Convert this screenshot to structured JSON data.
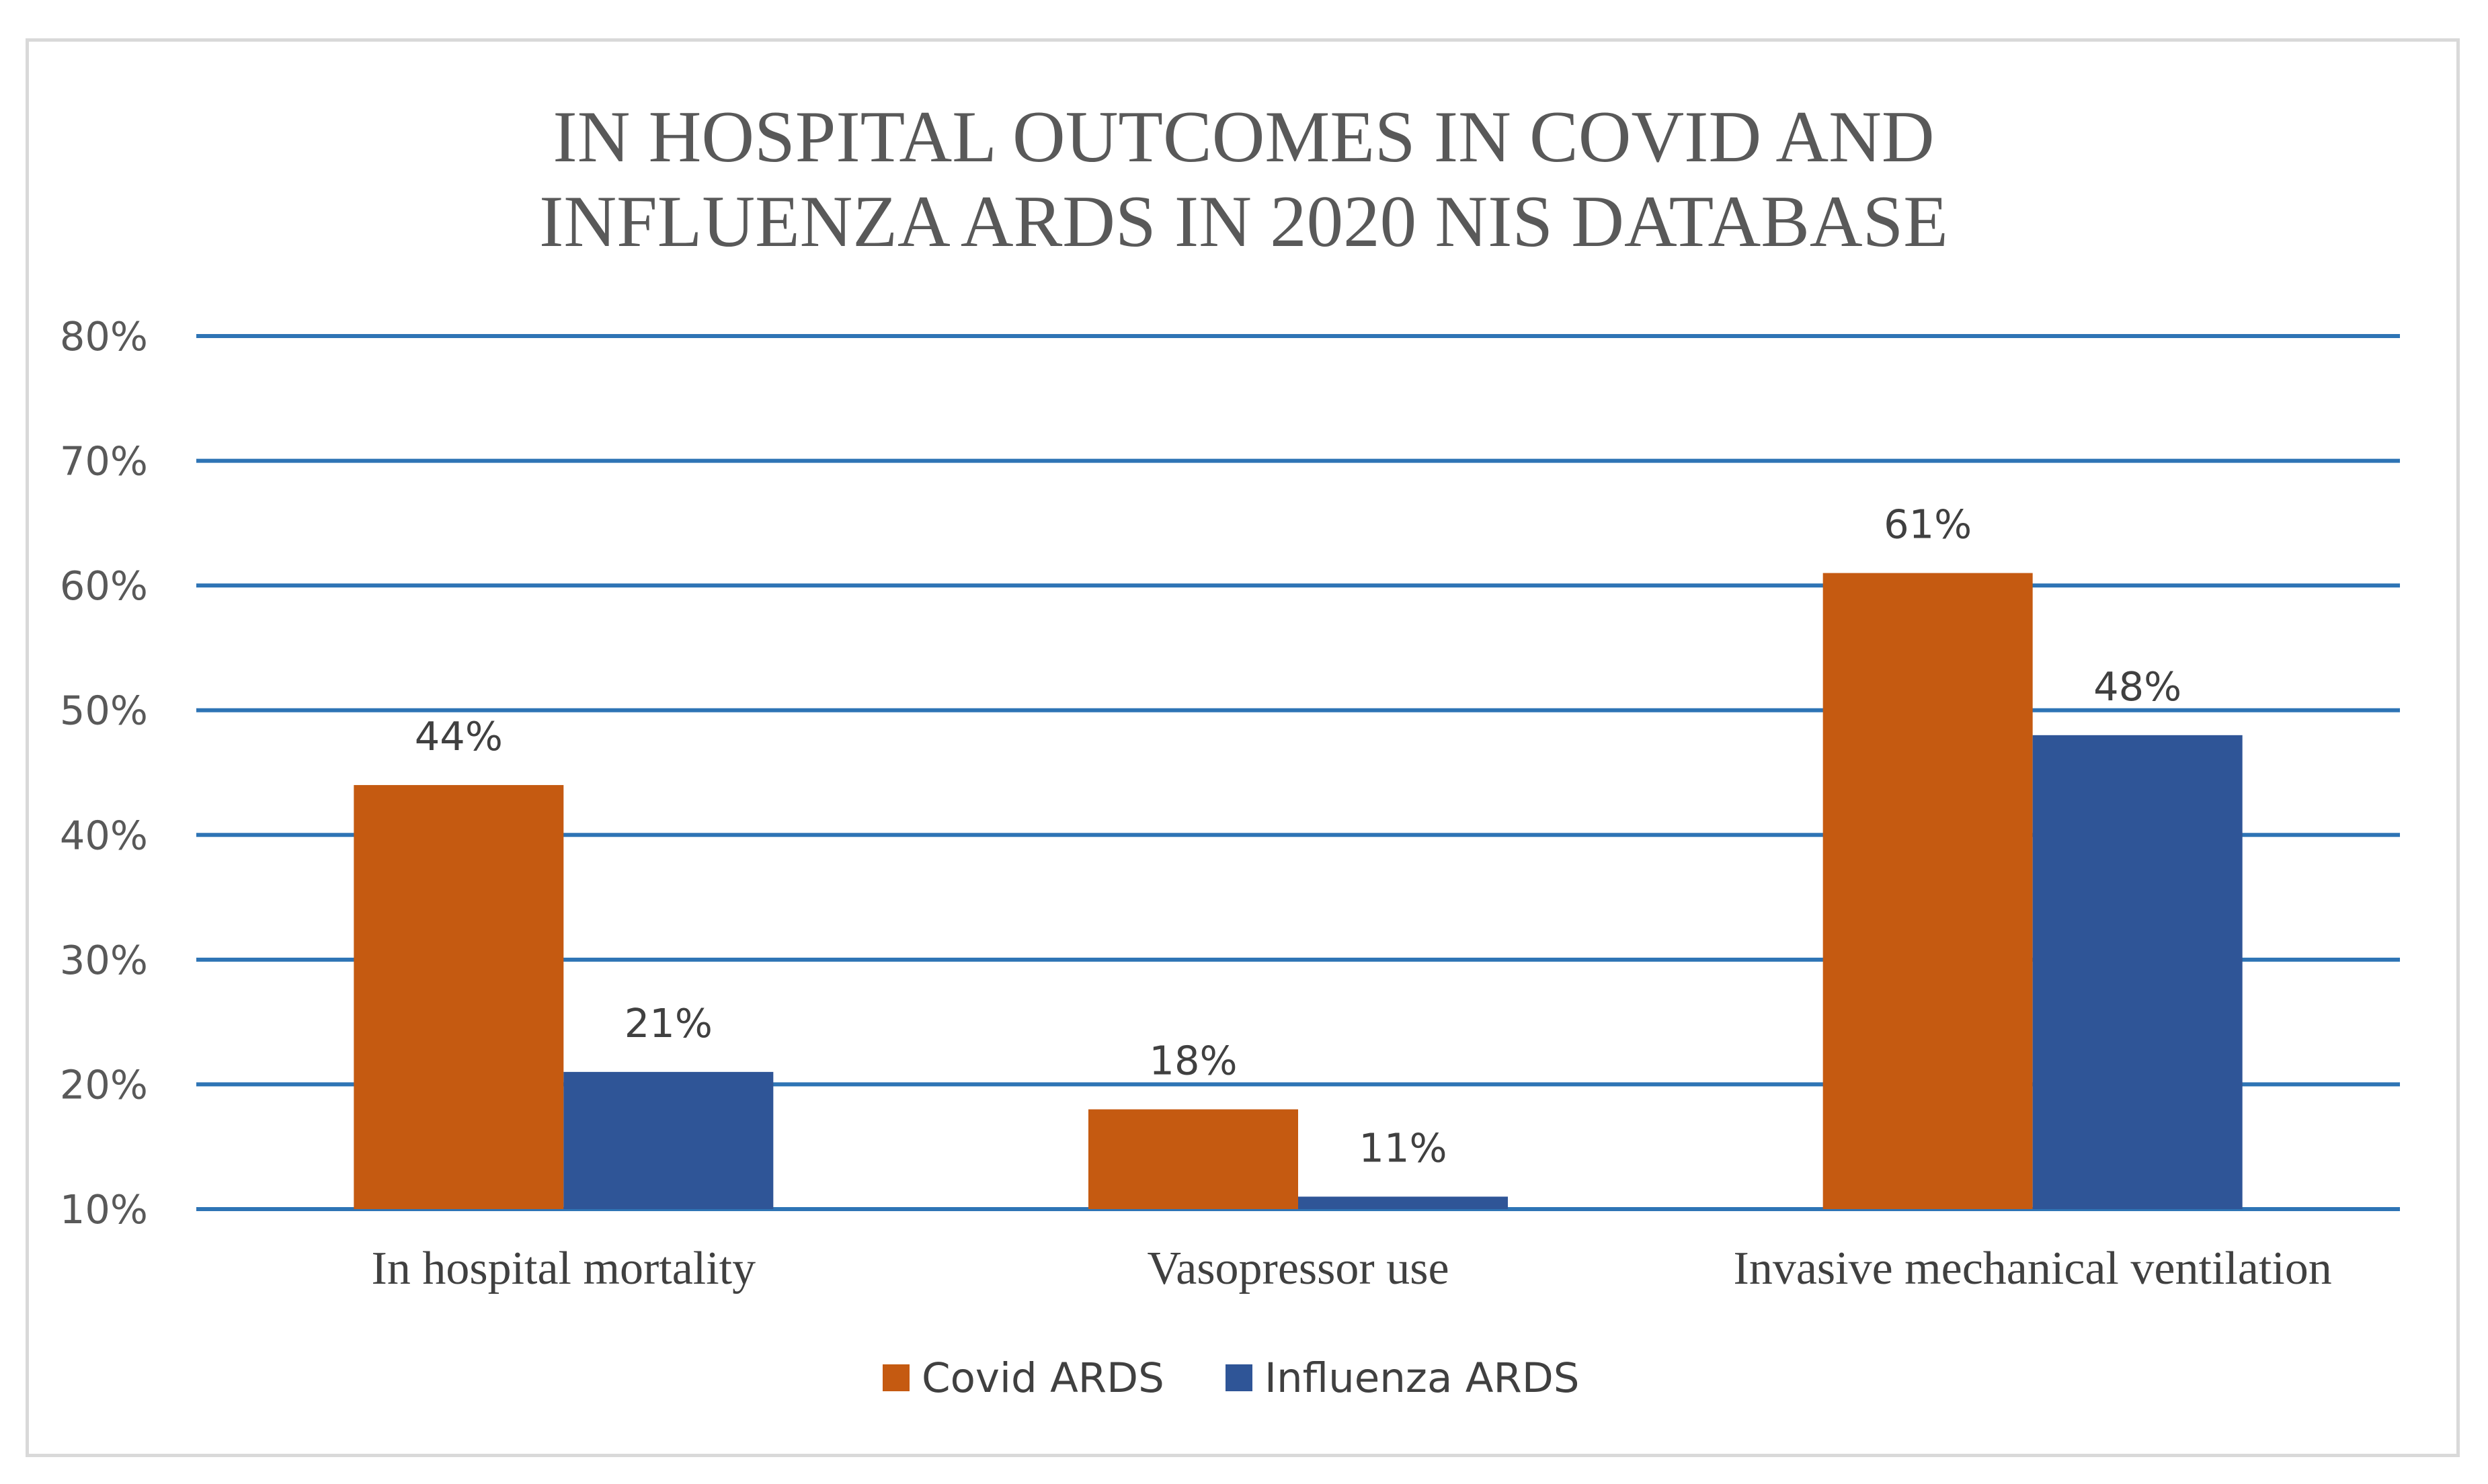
{
  "chart_data": {
    "type": "bar",
    "title": [
      "IN HOSPITAL OUTCOMES IN COVID AND",
      "INFLUENZA ARDS IN 2020 NIS DATABASE"
    ],
    "categories": [
      "In hospital mortality",
      "Vasopressor use",
      "Invasive mechanical ventilation"
    ],
    "series": [
      {
        "name": "Covid ARDS",
        "color": "#c55a11",
        "values": [
          44,
          18,
          61
        ],
        "labels": [
          "44%",
          "18%",
          "61%"
        ]
      },
      {
        "name": "Influenza ARDS",
        "color": "#2f5597",
        "values": [
          21,
          11,
          48
        ],
        "labels": [
          "21%",
          "11%",
          "48%"
        ]
      }
    ],
    "ylim": [
      10,
      80
    ],
    "yticks": [
      10,
      20,
      30,
      40,
      50,
      60,
      70,
      80
    ],
    "ytick_labels": [
      "10%",
      "20%",
      "30%",
      "40%",
      "50%",
      "60%",
      "70%",
      "80%"
    ],
    "xlabel": "",
    "ylabel": "",
    "grid": true,
    "gridline_color": "#2e74b5",
    "legend_position": "bottom"
  }
}
